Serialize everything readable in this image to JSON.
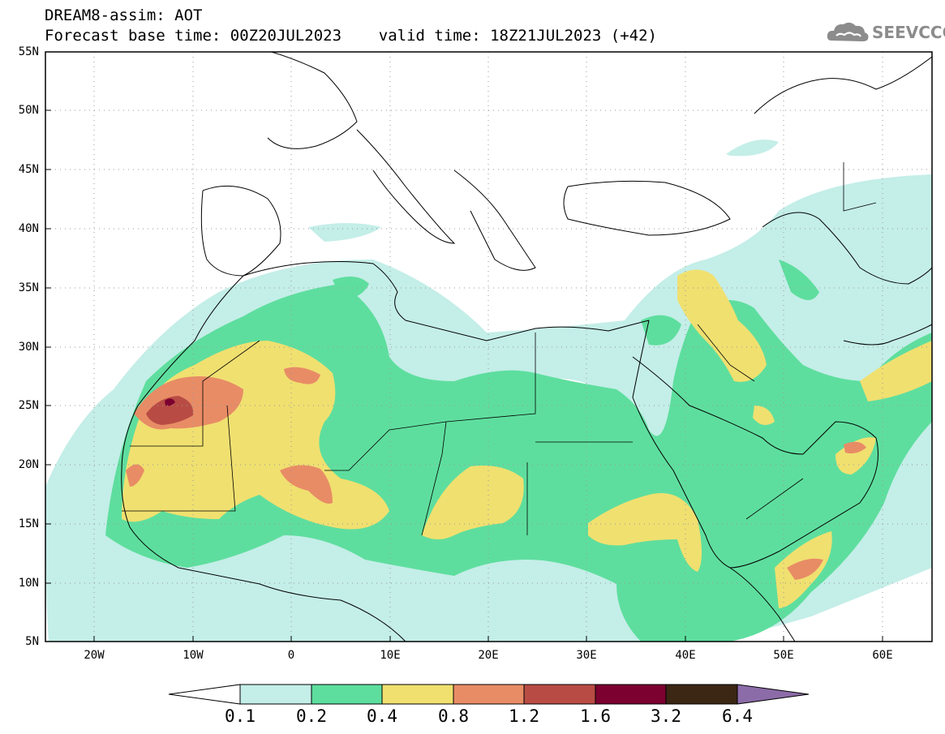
{
  "header": {
    "line1": "DREAM8-assim: AOT",
    "line2": "Forecast base time: 00Z20JUL2023    valid time: 18Z21JUL2023 (+42)"
  },
  "logo": {
    "text": "SEEVCCC",
    "icon": "cloud-icon",
    "color": "#8c8c8c"
  },
  "map": {
    "projection": "cylindrical lat-lon",
    "lon_range": [
      -25,
      65
    ],
    "lat_range": [
      5,
      55
    ],
    "lat_ticks": [
      "55N",
      "50N",
      "45N",
      "40N",
      "35N",
      "30N",
      "25N",
      "20N",
      "15N",
      "10N",
      "5N"
    ],
    "lon_ticks": [
      "20W",
      "10W",
      "0",
      "10E",
      "20E",
      "30E",
      "40E",
      "50E",
      "60E"
    ],
    "grid": "dotted"
  },
  "colorbar": {
    "labels": [
      "0.1",
      "0.2",
      "0.4",
      "0.8",
      "1.2",
      "1.6",
      "3.2",
      "6.4"
    ],
    "colors": [
      "#c4eee8",
      "#5ede9e",
      "#f0e070",
      "#e88c66",
      "#b84c44",
      "#7c0030",
      "#3c2614",
      "#8c6ca8"
    ]
  }
}
